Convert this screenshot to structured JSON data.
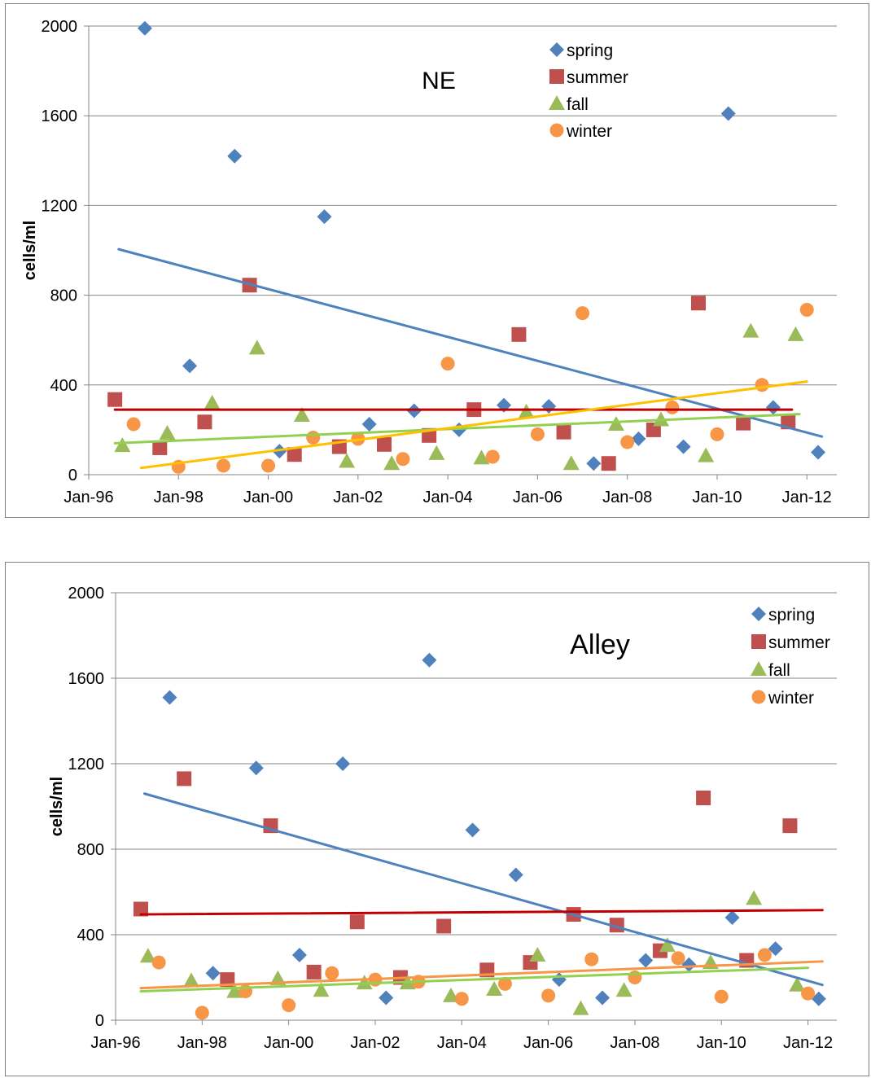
{
  "charts": [
    {
      "title": "NE",
      "ylabel": "cells/ml",
      "x_ticks": [
        "Jan-96",
        "Jan-98",
        "Jan-00",
        "Jan-02",
        "Jan-04",
        "Jan-06",
        "Jan-08",
        "Jan-10",
        "Jan-12"
      ],
      "y_ticks": [
        "0",
        "400",
        "800",
        "1200",
        "1600",
        "2000"
      ],
      "legend": [
        "spring",
        "summer",
        "fall",
        "winter"
      ]
    },
    {
      "title": "Alley",
      "ylabel": "cells/ml",
      "x_ticks": [
        "Jan-96",
        "Jan-98",
        "Jan-00",
        "Jan-02",
        "Jan-04",
        "Jan-06",
        "Jan-08",
        "Jan-10",
        "Jan-12"
      ],
      "y_ticks": [
        "0",
        "400",
        "800",
        "1200",
        "1600",
        "2000"
      ],
      "legend": [
        "spring",
        "summer",
        "fall",
        "winter"
      ]
    }
  ],
  "colors": {
    "spring": "#4f81bd",
    "summer": "#c0504d",
    "fall": "#9bbb59",
    "winter": "#f79646",
    "trend_spring": "#4f81bd",
    "trend_summer": "#c00000",
    "trend_fall": "#92d050",
    "trend_winter_ne": "#ffc000",
    "trend_winter_alley": "#f79646"
  },
  "chart_data": [
    {
      "type": "scatter",
      "title": "NE",
      "ylabel": "cells/ml",
      "xlabel": "",
      "x_axis": "date",
      "xlim": [
        "1996-01",
        "2012-09"
      ],
      "ylim": [
        0,
        2000
      ],
      "y_tick_step": 400,
      "x_tick_labels": [
        "Jan-96",
        "Jan-98",
        "Jan-00",
        "Jan-02",
        "Jan-04",
        "Jan-06",
        "Jan-08",
        "Jan-10",
        "Jan-12"
      ],
      "grid": "horizontal",
      "legend_position": "top-right",
      "series": [
        {
          "name": "spring",
          "marker": "diamond",
          "points": [
            [
              "1997-04",
              1990
            ],
            [
              "1998-04",
              485
            ],
            [
              "1999-04",
              1420
            ],
            [
              "2000-04",
              105
            ],
            [
              "2001-04",
              1150
            ],
            [
              "2002-04",
              225
            ],
            [
              "2003-04",
              285
            ],
            [
              "2004-04",
              200
            ],
            [
              "2005-04",
              310
            ],
            [
              "2006-04",
              305
            ],
            [
              "2007-04",
              50
            ],
            [
              "2008-04",
              160
            ],
            [
              "2009-04",
              125
            ],
            [
              "2010-04",
              1610
            ],
            [
              "2011-04",
              300
            ],
            [
              "2012-04",
              100
            ]
          ]
        },
        {
          "name": "summer",
          "marker": "square",
          "points": [
            [
              "1996-08",
              335
            ],
            [
              "1997-08",
              120
            ],
            [
              "1998-08",
              235
            ],
            [
              "1999-08",
              845
            ],
            [
              "2000-08",
              90
            ],
            [
              "2001-08",
              125
            ],
            [
              "2002-08",
              135
            ],
            [
              "2003-08",
              175
            ],
            [
              "2004-08",
              290
            ],
            [
              "2005-08",
              625
            ],
            [
              "2006-08",
              190
            ],
            [
              "2007-08",
              50
            ],
            [
              "2008-08",
              200
            ],
            [
              "2009-08",
              765
            ],
            [
              "2010-08",
              230
            ],
            [
              "2011-08",
              235
            ]
          ]
        },
        {
          "name": "fall",
          "marker": "triangle",
          "points": [
            [
              "1996-10",
              130
            ],
            [
              "1997-10",
              185
            ],
            [
              "1998-10",
              320
            ],
            [
              "1999-10",
              565
            ],
            [
              "2000-10",
              265
            ],
            [
              "2001-10",
              60
            ],
            [
              "2002-10",
              50
            ],
            [
              "2003-10",
              95
            ],
            [
              "2004-10",
              75
            ],
            [
              "2005-10",
              280
            ],
            [
              "2006-10",
              50
            ],
            [
              "2007-10",
              225
            ],
            [
              "2008-10",
              245
            ],
            [
              "2009-10",
              85
            ],
            [
              "2010-10",
              640
            ],
            [
              "2011-10",
              625
            ]
          ]
        },
        {
          "name": "winter",
          "marker": "circle",
          "points": [
            [
              "1997-01",
              225
            ],
            [
              "1998-01",
              35
            ],
            [
              "1999-01",
              40
            ],
            [
              "2000-01",
              40
            ],
            [
              "2001-01",
              165
            ],
            [
              "2002-01",
              160
            ],
            [
              "2003-01",
              70
            ],
            [
              "2004-01",
              495
            ],
            [
              "2005-01",
              80
            ],
            [
              "2006-01",
              180
            ],
            [
              "2007-01",
              720
            ],
            [
              "2008-01",
              145
            ],
            [
              "2009-01",
              300
            ],
            [
              "2010-01",
              180
            ],
            [
              "2011-01",
              400
            ],
            [
              "2012-01",
              735
            ]
          ]
        }
      ],
      "trendlines": [
        {
          "series": "spring",
          "from": [
            "1996-09",
            1005
          ],
          "to": [
            "2012-05",
            170
          ]
        },
        {
          "series": "summer",
          "from": [
            "1996-08",
            290
          ],
          "to": [
            "2011-09",
            290
          ]
        },
        {
          "series": "fall",
          "from": [
            "1996-08",
            140
          ],
          "to": [
            "2011-11",
            270
          ]
        },
        {
          "series": "winter",
          "from": [
            "1997-03",
            30
          ],
          "to": [
            "2012-01",
            415
          ]
        }
      ]
    },
    {
      "type": "scatter",
      "title": "Alley",
      "ylabel": "cells/ml",
      "xlabel": "",
      "x_axis": "date",
      "xlim": [
        "1996-01",
        "2012-09"
      ],
      "ylim": [
        0,
        2000
      ],
      "y_tick_step": 400,
      "x_tick_labels": [
        "Jan-96",
        "Jan-98",
        "Jan-00",
        "Jan-02",
        "Jan-04",
        "Jan-06",
        "Jan-08",
        "Jan-10",
        "Jan-12"
      ],
      "grid": "horizontal",
      "legend_position": "top-right",
      "series": [
        {
          "name": "spring",
          "marker": "diamond",
          "points": [
            [
              "1997-04",
              1510
            ],
            [
              "1998-04",
              220
            ],
            [
              "1999-04",
              1180
            ],
            [
              "2000-04",
              305
            ],
            [
              "2001-04",
              1200
            ],
            [
              "2002-04",
              105
            ],
            [
              "2003-04",
              1685
            ],
            [
              "2004-04",
              890
            ],
            [
              "2005-04",
              680
            ],
            [
              "2006-04",
              190
            ],
            [
              "2007-04",
              105
            ],
            [
              "2008-04",
              280
            ],
            [
              "2009-04",
              260
            ],
            [
              "2010-04",
              480
            ],
            [
              "2011-04",
              335
            ],
            [
              "2012-04",
              100
            ]
          ]
        },
        {
          "name": "summer",
          "marker": "square",
          "points": [
            [
              "1996-08",
              520
            ],
            [
              "1997-08",
              1130
            ],
            [
              "1998-08",
              190
            ],
            [
              "1999-08",
              910
            ],
            [
              "2000-08",
              225
            ],
            [
              "2001-08",
              460
            ],
            [
              "2002-08",
              200
            ],
            [
              "2003-08",
              440
            ],
            [
              "2004-08",
              235
            ],
            [
              "2005-08",
              270
            ],
            [
              "2006-08",
              495
            ],
            [
              "2007-08",
              445
            ],
            [
              "2008-08",
              325
            ],
            [
              "2009-08",
              1040
            ],
            [
              "2010-08",
              280
            ],
            [
              "2011-08",
              910
            ]
          ]
        },
        {
          "name": "fall",
          "marker": "triangle",
          "points": [
            [
              "1996-10",
              300
            ],
            [
              "1997-10",
              185
            ],
            [
              "1998-10",
              135
            ],
            [
              "1999-10",
              195
            ],
            [
              "2000-10",
              140
            ],
            [
              "2001-10",
              175
            ],
            [
              "2002-10",
              175
            ],
            [
              "2003-10",
              115
            ],
            [
              "2004-10",
              145
            ],
            [
              "2005-10",
              305
            ],
            [
              "2006-10",
              55
            ],
            [
              "2007-10",
              140
            ],
            [
              "2008-10",
              350
            ],
            [
              "2009-10",
              270
            ],
            [
              "2010-10",
              570
            ],
            [
              "2011-10",
              165
            ]
          ]
        },
        {
          "name": "winter",
          "marker": "circle",
          "points": [
            [
              "1997-01",
              270
            ],
            [
              "1998-01",
              35
            ],
            [
              "1999-01",
              135
            ],
            [
              "2000-01",
              70
            ],
            [
              "2001-01",
              220
            ],
            [
              "2002-01",
              190
            ],
            [
              "2003-01",
              180
            ],
            [
              "2004-01",
              100
            ],
            [
              "2005-01",
              170
            ],
            [
              "2006-01",
              115
            ],
            [
              "2007-01",
              285
            ],
            [
              "2008-01",
              200
            ],
            [
              "2009-01",
              290
            ],
            [
              "2010-01",
              110
            ],
            [
              "2011-01",
              305
            ],
            [
              "2012-01",
              125
            ]
          ]
        }
      ],
      "trendlines": [
        {
          "series": "spring",
          "from": [
            "1996-09",
            1060
          ],
          "to": [
            "2012-05",
            165
          ]
        },
        {
          "series": "summer",
          "from": [
            "1996-08",
            495
          ],
          "to": [
            "2012-05",
            515
          ]
        },
        {
          "series": "fall",
          "from": [
            "1996-08",
            135
          ],
          "to": [
            "2012-01",
            245
          ]
        },
        {
          "series": "winter",
          "from": [
            "1996-08",
            150
          ],
          "to": [
            "2012-05",
            275
          ]
        }
      ]
    }
  ]
}
